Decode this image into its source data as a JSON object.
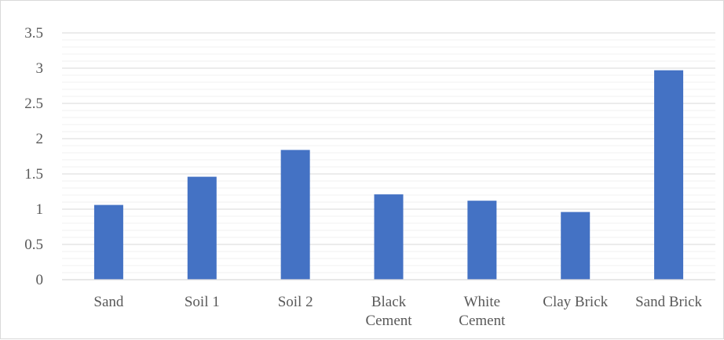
{
  "chart_data": {
    "type": "bar",
    "title": "",
    "xlabel": "",
    "ylabel": "",
    "categories": [
      [
        "Sand"
      ],
      [
        "Soil 1"
      ],
      [
        "Soil 2"
      ],
      [
        "Black",
        "Cement"
      ],
      [
        "White",
        "Cement"
      ],
      [
        "Clay Brick"
      ],
      [
        "Sand Brick"
      ]
    ],
    "values": [
      1.06,
      1.46,
      1.84,
      1.21,
      1.12,
      0.96,
      2.97
    ],
    "ylim": [
      0,
      3.5
    ],
    "major_ticks": [
      "0",
      "0.5",
      "1",
      "1.5",
      "2",
      "2.5",
      "3",
      "3.5"
    ],
    "minor_step": 0.1,
    "grid": true,
    "legend": "none",
    "colors": {
      "bar": "#4472c4",
      "major_grid": "#d9d9d9",
      "minor_grid": "#f0f0f0",
      "axis": "#d9d9d9",
      "text": "#595959"
    }
  }
}
